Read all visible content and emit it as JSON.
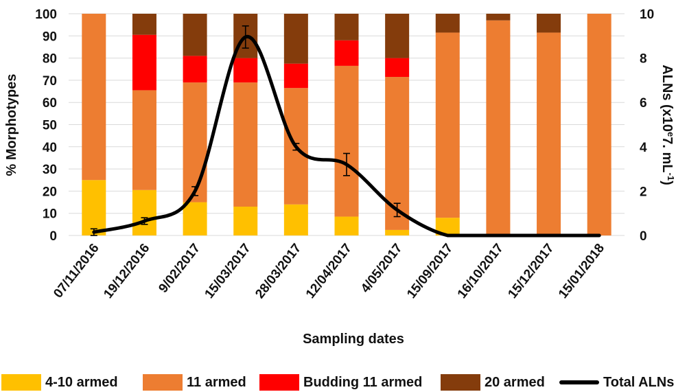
{
  "chart_data": {
    "type": "bar",
    "stacked": true,
    "secondary_line": true,
    "categories": [
      "07/11/2016",
      "19/12/2016",
      "9/02/2017",
      "15/03/2017",
      "28/03/2017",
      "12/04/2017",
      "4/05/2017",
      "15/09/2017",
      "16/10/2017",
      "15/12/2017",
      "15/01/2018"
    ],
    "series": [
      {
        "name": "4-10 armed",
        "color": "#FFC000",
        "values": [
          25,
          20.5,
          15,
          13,
          14,
          8.5,
          2.5,
          8,
          0,
          0,
          0
        ]
      },
      {
        "name": "11 armed",
        "color": "#ED7D31",
        "values": [
          75,
          45,
          54,
          56,
          52.5,
          68,
          69,
          83.5,
          97,
          91.5,
          100
        ]
      },
      {
        "name": "Budding 11 armed",
        "color": "#FF0000",
        "values": [
          0,
          25,
          12,
          11,
          11,
          11.5,
          8.5,
          0,
          0,
          0,
          0
        ]
      },
      {
        "name": "20 armed",
        "color": "#843C0C",
        "values": [
          0,
          9.5,
          19,
          20,
          22.5,
          12,
          20,
          8.5,
          3,
          8.5,
          0
        ]
      }
    ],
    "line": {
      "name": "Total ALNs",
      "color": "#000000",
      "values": [
        0.15,
        0.65,
        2.0,
        8.95,
        4.0,
        3.2,
        1.15,
        0,
        0,
        0,
        0
      ],
      "errors": [
        0.15,
        0.15,
        0.2,
        0.5,
        0.15,
        0.5,
        0.3,
        0,
        0,
        0,
        0
      ]
    },
    "xlabel": "Sampling dates",
    "ylabel": "% Morphotypes",
    "y2label_parts": {
      "main": "ALNs (x10",
      "exp1": "e",
      "mid": "7. mL",
      "exp2": "-1",
      "end": ")"
    },
    "ylim": [
      0,
      100
    ],
    "y2lim": [
      0,
      10
    ],
    "yticks": [
      0,
      10,
      20,
      30,
      40,
      50,
      60,
      70,
      80,
      90,
      100
    ],
    "y2ticks": [
      0,
      2,
      4,
      6,
      8,
      10
    ],
    "grid": true,
    "legend_position": "bottom"
  }
}
